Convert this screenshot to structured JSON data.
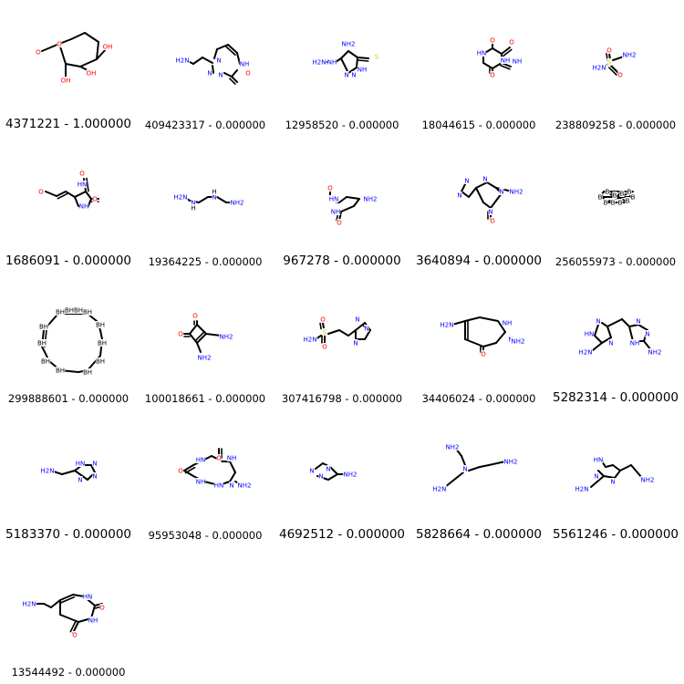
{
  "cells": [
    {
      "id": "4371221",
      "score": "1.000000",
      "label": "4371221 - 1.000000",
      "atoms": [
        "O",
        "OH",
        "OH",
        "OH",
        "O"
      ]
    },
    {
      "id": "409423317",
      "score": "0.000000",
      "label": "409423317 - 0.000000",
      "atoms": [
        "H2N",
        "N",
        "NH",
        "N",
        "N",
        "O"
      ]
    },
    {
      "id": "12958520",
      "score": "0.000000",
      "label": "12958520 - 0.000000",
      "atoms": [
        "NH2",
        "H2N",
        "NH",
        "N",
        "N",
        "NH",
        "S"
      ]
    },
    {
      "id": "18044615",
      "score": "0.000000",
      "label": "18044615 - 0.000000",
      "atoms": [
        "O",
        "HN",
        "NH",
        "O",
        "O",
        "NH"
      ]
    },
    {
      "id": "238809258",
      "score": "0.000000",
      "label": "238809258 - 0.000000",
      "atoms": [
        "O",
        "H2N",
        "S",
        "NH2",
        "O"
      ]
    },
    {
      "id": "1686091",
      "score": "0.000000",
      "label": "1686091 - 0.000000",
      "atoms": [
        "O",
        "O",
        "HN",
        "NH",
        "O"
      ]
    },
    {
      "id": "19364225",
      "score": "0.000000",
      "label": "19364225 - 0.000000",
      "atoms": [
        "H2N",
        "N",
        "H",
        "N",
        "H",
        "NH2"
      ]
    },
    {
      "id": "967278",
      "score": "0.000000",
      "label": "967278 - 0.000000",
      "atoms": [
        "O",
        "HN",
        "NH",
        "NH2",
        "O"
      ]
    },
    {
      "id": "3640894",
      "score": "0.000000",
      "label": "3640894 - 0.000000",
      "atoms": [
        "N",
        "N",
        "N",
        "N",
        "N",
        "NH2",
        "O"
      ]
    },
    {
      "id": "256055973",
      "score": "0.000000",
      "label": "256055973 - 0.000000",
      "atoms": [
        "B",
        "B",
        "B",
        "B",
        "B",
        "B",
        "B",
        "B",
        "B",
        "B"
      ]
    },
    {
      "id": "299888601",
      "score": "0.000000",
      "label": "299888601 - 0.000000",
      "atoms": [
        "BH",
        "BH",
        "BH",
        "BH",
        "BH",
        "BH",
        "BH",
        "BH",
        "BH",
        "BH",
        "BH",
        "BH"
      ]
    },
    {
      "id": "100018661",
      "score": "0.000000",
      "label": "100018661 - 0.000000",
      "atoms": [
        "O",
        "O",
        "NH2",
        "NH2"
      ]
    },
    {
      "id": "307416798",
      "score": "0.000000",
      "label": "307416798 - 0.000000",
      "atoms": [
        "O",
        "H2N",
        "S",
        "O",
        "N",
        "N",
        "N"
      ]
    },
    {
      "id": "34406024",
      "score": "0.000000",
      "label": "34406024 - 0.000000",
      "atoms": [
        "H2N",
        "NH",
        "N",
        "NH2",
        "O"
      ]
    },
    {
      "id": "5282314",
      "score": "0.000000",
      "label": "5282314 - 0.000000",
      "atoms": [
        "N",
        "HN",
        "N",
        "N",
        "N",
        "NH",
        "H2N",
        "NH2"
      ]
    },
    {
      "id": "5183370",
      "score": "0.000000",
      "label": "5183370 - 0.000000",
      "atoms": [
        "H2N",
        "HN",
        "N",
        "N",
        "N"
      ]
    },
    {
      "id": "95953048",
      "score": "0.000000",
      "label": "95953048 - 0.000000",
      "atoms": [
        "O",
        "HN",
        "NH",
        "O",
        "HN",
        "NH",
        "N",
        "NH2"
      ]
    },
    {
      "id": "4692512",
      "score": "0.000000",
      "label": "4692512 - 0.000000",
      "atoms": [
        "N",
        "N",
        "N",
        "NH2"
      ]
    },
    {
      "id": "5828664",
      "score": "0.000000",
      "label": "5828664 - 0.000000",
      "atoms": [
        "NH2",
        "N",
        "NH2",
        "H2N"
      ]
    },
    {
      "id": "5561246",
      "score": "0.000000",
      "label": "5561246 - 0.000000",
      "atoms": [
        "HN",
        "N",
        "N",
        "H2N",
        "NH2"
      ]
    },
    {
      "id": "13544492",
      "score": "0.000000",
      "label": "13544492 - 0.000000",
      "atoms": [
        "H2N",
        "HN",
        "O",
        "NH",
        "O"
      ]
    }
  ],
  "colors": {
    "bond": "#000000",
    "nitrogen": "#0000ff",
    "oxygen": "#ff0000",
    "sulfur": "#cccc00",
    "carbon_label": "#000000"
  }
}
